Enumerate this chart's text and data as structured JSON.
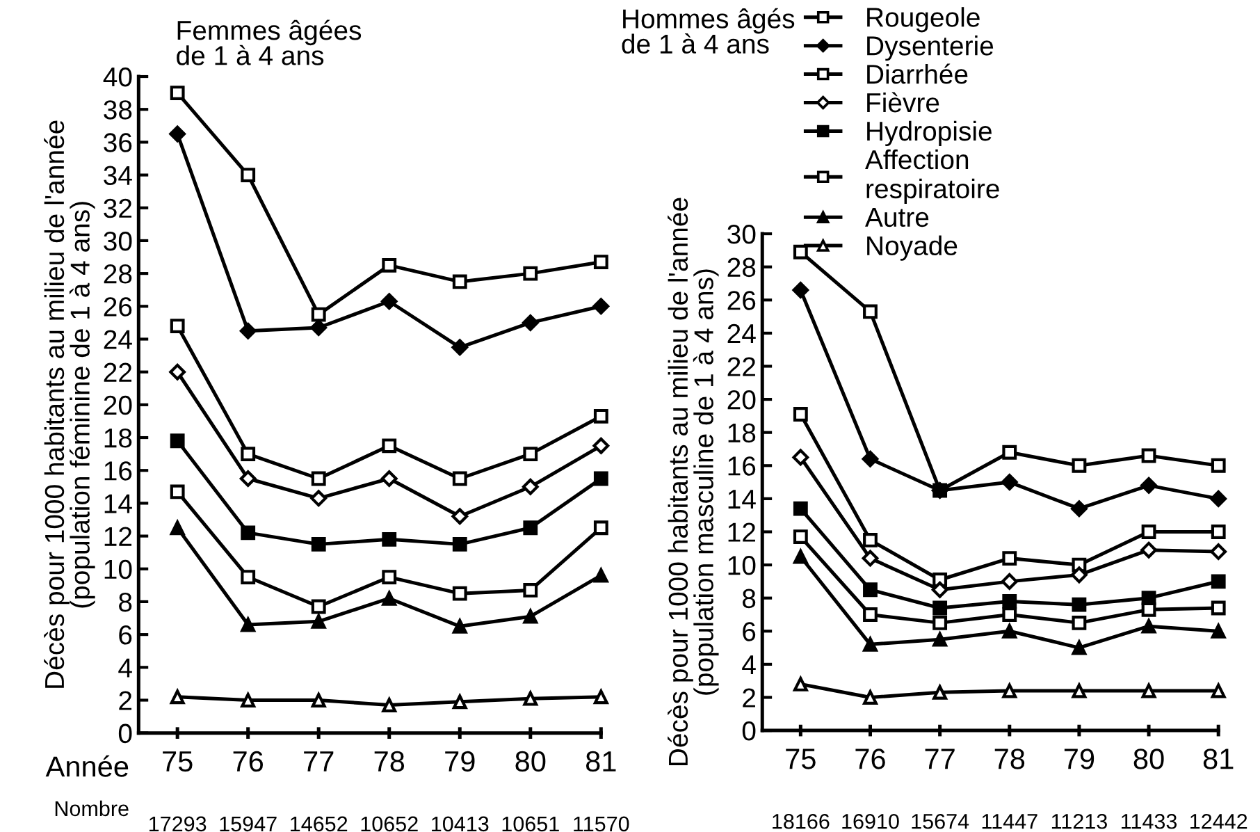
{
  "chart_data": [
    {
      "type": "line",
      "title": "Femmes âgées\nde 1 à 4 ans",
      "xlabel": "Année",
      "ylabel": "Décès pour 1000 habitants au milieu de l'année\n(population féminine de 1 à 4 ans)",
      "categories": [
        "75",
        "76",
        "77",
        "78",
        "79",
        "80",
        "81"
      ],
      "ylim": [
        0,
        40
      ],
      "yticks": [
        0,
        2,
        4,
        6,
        8,
        10,
        12,
        14,
        16,
        18,
        20,
        22,
        24,
        26,
        28,
        30,
        32,
        34,
        36,
        38,
        40
      ],
      "grid": false,
      "annotations": [
        "Nombre",
        "17293",
        "15947",
        "14652",
        "10652",
        "10413",
        "10651",
        "11570"
      ],
      "series": [
        {
          "color": "#000000",
          "marker": "square",
          "values": [
            39,
            34,
            25.5,
            28.5,
            27.5,
            28,
            28.7
          ]
        },
        {
          "color": "#000000",
          "marker": "diamond",
          "values": [
            36.5,
            24.5,
            24.7,
            26.3,
            23.5,
            25,
            26
          ]
        },
        {
          "color": "#000000",
          "marker": "square",
          "values": [
            24.8,
            17,
            15.5,
            17.5,
            15.5,
            17,
            19.3
          ]
        },
        {
          "color": "#000000",
          "marker": "diamond",
          "values": [
            22,
            15.5,
            14.3,
            15.5,
            13.2,
            15,
            17.5
          ]
        },
        {
          "color": "#000000",
          "marker": "square",
          "values": [
            17.8,
            12.2,
            11.5,
            11.8,
            11.5,
            12.5,
            15.5
          ]
        },
        {
          "color": "#000000",
          "marker": "square",
          "values": [
            14.7,
            9.5,
            7.7,
            9.5,
            8.5,
            8.7,
            12.5
          ]
        },
        {
          "color": "#000000",
          "marker": "triangle",
          "values": [
            12.5,
            6.6,
            6.8,
            8.2,
            6.5,
            7.1,
            9.6
          ]
        },
        {
          "color": "#000000",
          "marker": "triangle",
          "values": [
            2.2,
            2,
            2,
            1.7,
            1.9,
            2.1,
            2.2
          ]
        }
      ]
    },
    {
      "type": "line",
      "title": "Hommes âgés\nde 1 à 4 ans",
      "ylabel": "Décès pour 1000 habitants au milieu de l'année\n(population masculine de 1 à 4 ans)",
      "categories": [
        "75",
        "76",
        "77",
        "78",
        "79",
        "80",
        "81"
      ],
      "ylim": [
        0,
        30
      ],
      "yticks": [
        0,
        2,
        4,
        6,
        8,
        10,
        12,
        14,
        16,
        18,
        20,
        22,
        24,
        26,
        28,
        30
      ],
      "grid": false,
      "legend": "top",
      "annotations": [
        "18166",
        "16910",
        "15674",
        "11447",
        "11213",
        "11433",
        "12442"
      ],
      "series": [
        {
          "name": "Rougeole",
          "color": "#000000",
          "marker": "square",
          "values": [
            28.9,
            25.3,
            14.5,
            16.8,
            16,
            16.6,
            16
          ]
        },
        {
          "name": "Dysenterie",
          "color": "#000000",
          "marker": "diamond",
          "values": [
            26.6,
            16.4,
            14.5,
            15,
            13.4,
            14.8,
            14
          ]
        },
        {
          "name": "Diarrhée",
          "color": "#000000",
          "marker": "square",
          "values": [
            19.1,
            11.5,
            9.1,
            10.4,
            10,
            12,
            12
          ]
        },
        {
          "name": "Fièvre",
          "color": "#000000",
          "marker": "diamond",
          "values": [
            16.5,
            10.4,
            8.5,
            9,
            9.4,
            10.9,
            10.8
          ]
        },
        {
          "name": "Hydropisie",
          "color": "#000000",
          "marker": "square",
          "values": [
            13.4,
            8.5,
            7.4,
            7.8,
            7.6,
            8,
            9
          ]
        },
        {
          "name": "Affection\nrespiratoire",
          "color": "#000000",
          "marker": "square",
          "values": [
            11.7,
            7,
            6.5,
            7,
            6.5,
            7.3,
            7.4
          ]
        },
        {
          "name": "Autre",
          "color": "#000000",
          "marker": "triangle",
          "values": [
            10.5,
            5.2,
            5.5,
            6,
            5,
            6.3,
            6
          ]
        },
        {
          "name": "Noyade",
          "color": "#000000",
          "marker": "triangle",
          "values": [
            2.8,
            2,
            2.3,
            2.4,
            2.4,
            2.4,
            2.4
          ]
        }
      ]
    }
  ]
}
